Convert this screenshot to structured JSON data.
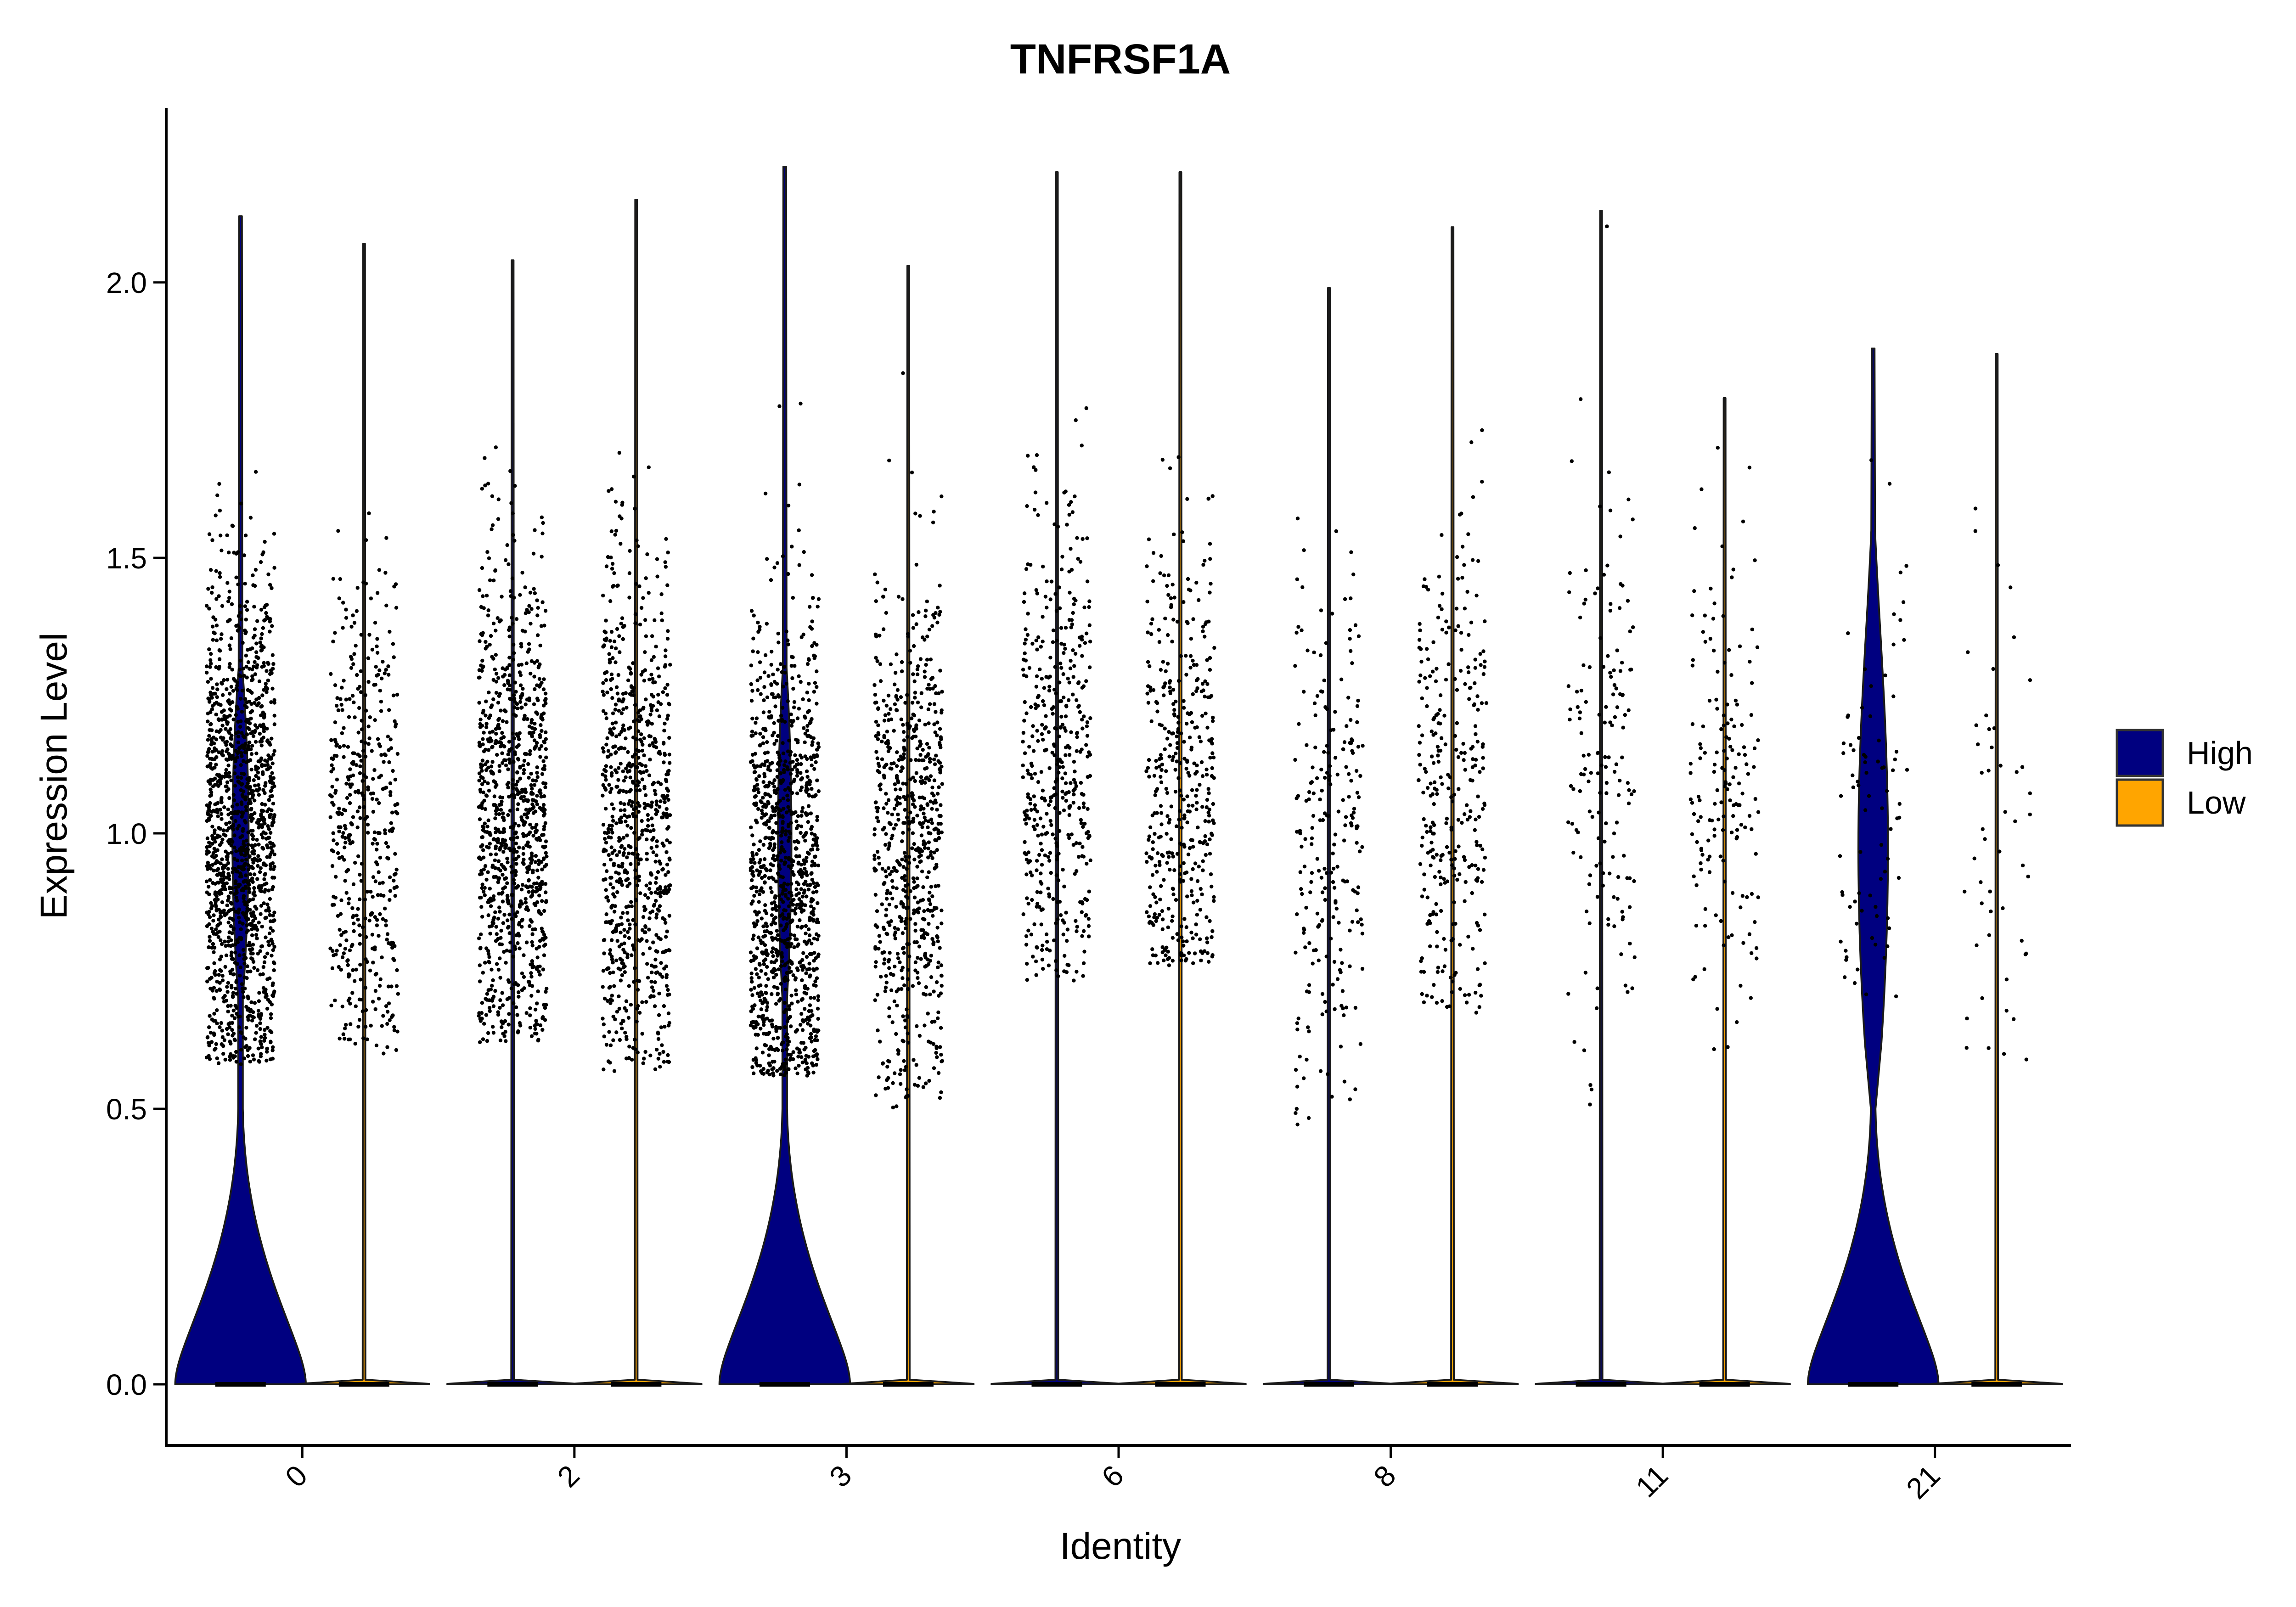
{
  "chart_data": {
    "type": "violin",
    "title": "TNFRSF1A",
    "xlabel": "Identity",
    "ylabel": "Expression Level",
    "ylim": [
      -0.11,
      2.31
    ],
    "yticks": [
      "0.0",
      "0.5",
      "1.0",
      "1.5",
      "2.0"
    ],
    "categories": [
      "0",
      "2",
      "3",
      "6",
      "8",
      "11",
      "21"
    ],
    "split_by": [
      "High",
      "Low"
    ],
    "legend": {
      "position": "right",
      "entries": [
        {
          "label": "High",
          "color": "#000080"
        },
        {
          "label": "Low",
          "color": "#FFA500"
        }
      ]
    },
    "series": [
      {
        "name": "High",
        "color": "#000080",
        "max_expression": [
          2.12,
          2.04,
          2.21,
          2.2,
          1.99,
          2.13,
          1.88
        ],
        "approx_cells": [
          1400,
          950,
          1100,
          450,
          230,
          150,
          80
        ],
        "nonzero_median": [
          1.0,
          1.03,
          0.92,
          1.12,
          0.95,
          1.12,
          1.02
        ],
        "point_range": [
          [
            0.58,
            2.12
          ],
          [
            0.62,
            2.04
          ],
          [
            0.56,
            2.21
          ],
          [
            0.73,
            2.2
          ],
          [
            0.47,
            1.99
          ],
          [
            0.5,
            2.13
          ],
          [
            0.7,
            1.88
          ]
        ]
      },
      {
        "name": "Low",
        "color": "#FFA500",
        "max_expression": [
          2.07,
          2.15,
          2.03,
          2.2,
          2.1,
          1.79,
          1.87
        ],
        "approx_cells": [
          450,
          800,
          700,
          420,
          300,
          160,
          50
        ],
        "nonzero_median": [
          1.0,
          1.02,
          0.98,
          1.1,
          1.08,
          1.08,
          1.05
        ],
        "point_range": [
          [
            0.6,
            2.07
          ],
          [
            0.56,
            2.15
          ],
          [
            0.5,
            2.03
          ],
          [
            0.76,
            2.2
          ],
          [
            0.67,
            2.1
          ],
          [
            0.6,
            1.79
          ],
          [
            0.58,
            1.87
          ]
        ]
      }
    ]
  }
}
